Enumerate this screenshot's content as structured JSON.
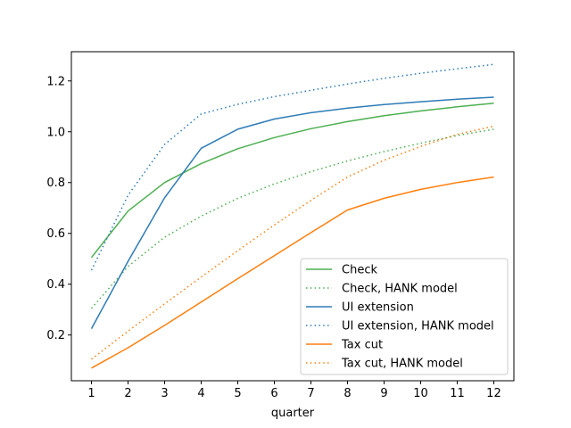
{
  "chart_data": {
    "type": "line",
    "title": "",
    "xlabel": "quarter",
    "ylabel": "",
    "x": [
      1,
      2,
      3,
      4,
      5,
      6,
      7,
      8,
      9,
      10,
      11,
      12
    ],
    "xlim": [
      0.45,
      12.55
    ],
    "ylim": [
      0.02,
      1.315
    ],
    "xticks": [
      1,
      2,
      3,
      4,
      5,
      6,
      7,
      8,
      9,
      10,
      11,
      12
    ],
    "yticks": [
      0.2,
      0.4,
      0.6,
      0.8,
      1.0,
      1.2
    ],
    "ytick_labels": [
      "0.2",
      "0.4",
      "0.6",
      "0.8",
      "1.0",
      "1.2"
    ],
    "grid": false,
    "legend_position": "lower-right",
    "series": [
      {
        "name": "Check",
        "color": "#4caf50",
        "style": "solid",
        "values": [
          0.505,
          0.688,
          0.8,
          0.875,
          0.933,
          0.977,
          1.012,
          1.04,
          1.063,
          1.082,
          1.098,
          1.112
        ]
      },
      {
        "name": "Check, HANK model",
        "color": "#4caf50",
        "style": "dotted",
        "values": [
          0.305,
          0.47,
          0.585,
          0.668,
          0.738,
          0.795,
          0.843,
          0.885,
          0.922,
          0.955,
          0.985,
          1.01
        ]
      },
      {
        "name": "UI extension",
        "color": "#2e7bb6",
        "style": "solid",
        "values": [
          0.225,
          0.49,
          0.74,
          0.935,
          1.01,
          1.05,
          1.075,
          1.093,
          1.107,
          1.118,
          1.128,
          1.136
        ]
      },
      {
        "name": "UI extension, HANK model",
        "color": "#2e7bb6",
        "style": "dotted",
        "values": [
          0.455,
          0.75,
          0.95,
          1.07,
          1.108,
          1.138,
          1.163,
          1.188,
          1.21,
          1.23,
          1.248,
          1.265
        ]
      },
      {
        "name": "Tax cut",
        "color": "#ff7f0e",
        "style": "solid",
        "values": [
          0.07,
          0.15,
          0.238,
          0.33,
          0.422,
          0.512,
          0.603,
          0.692,
          0.738,
          0.773,
          0.8,
          0.822
        ]
      },
      {
        "name": "Tax cut, HANK model",
        "color": "#ff7f0e",
        "style": "dotted",
        "values": [
          0.105,
          0.215,
          0.323,
          0.428,
          0.532,
          0.633,
          0.73,
          0.822,
          0.888,
          0.942,
          0.99,
          1.022
        ]
      }
    ]
  }
}
